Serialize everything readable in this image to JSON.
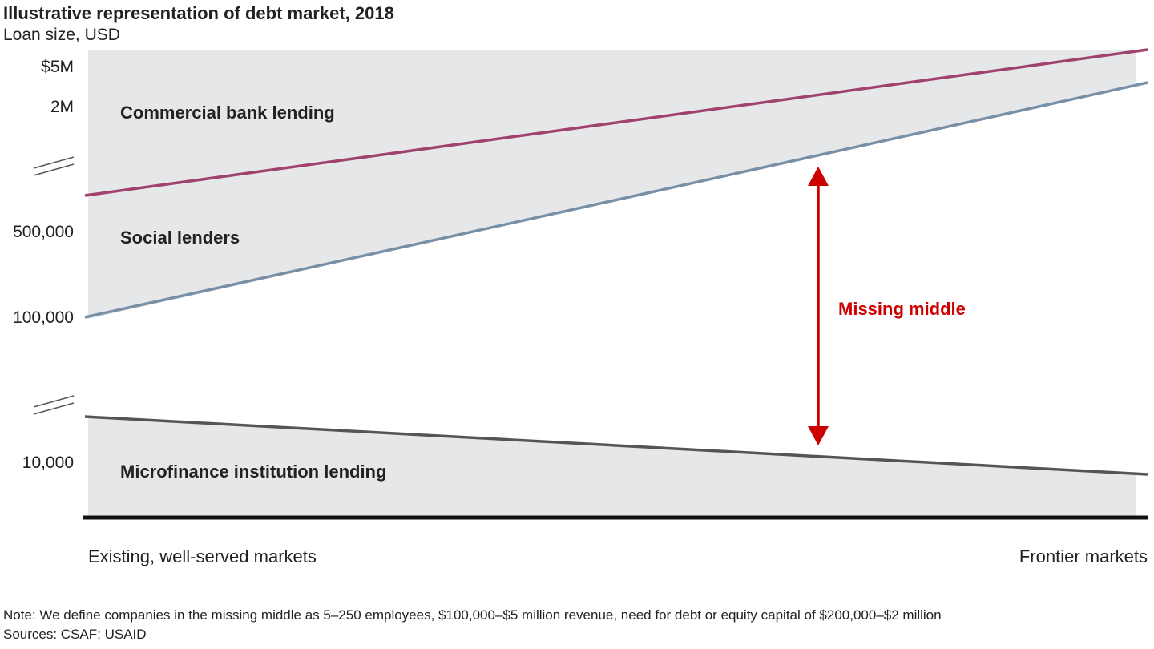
{
  "chart_data": {
    "type": "area",
    "title": "Illustrative representation of debt market, 2018",
    "subtitle": "Loan size, USD",
    "y_ticks": [
      "$5M",
      "2M",
      "500,000",
      "100,000",
      "10,000"
    ],
    "x_labels": [
      "Existing, well-served markets",
      "Frontier markets"
    ],
    "regions": [
      "Commercial bank lending",
      "Social lenders",
      "Microfinance institution lending"
    ],
    "annotation": "Missing middle",
    "colors": {
      "commercial_line": "#a0426e",
      "social_line": "#7890a6",
      "microfinance_line": "#555555",
      "shade": "#e6e7e8",
      "arrow": "#cc0000",
      "baseline": "#111111"
    }
  },
  "footer": {
    "note": "Note: We define companies in the missing middle as 5–250 employees, $100,000–$5 million revenue, need for debt or equity capital of $200,000–$2 million",
    "sources": "Sources: CSAF; USAID"
  }
}
